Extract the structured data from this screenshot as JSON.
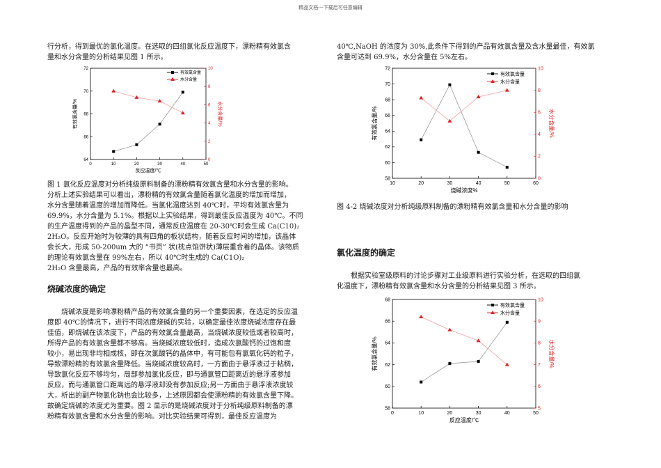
{
  "header": {
    "text": "精品文档---下载后可任意编辑"
  },
  "left": {
    "intro_lines": [
      "行分析，得到最优的氯化温度。在选取的四组氯化反应温度下，漂粉精有效氯含",
      "量和水分含量的分析结果见图 1 所示。"
    ],
    "fig1_caption_lines": [
      "图 1 氯化反应温度对分析纯级原料制备的漂粉精有效氯含量和水分含量的影响。",
      "分析上述实验结果可以看出，漂粉精的有效氯含量随着氯化温度的增加而增加，",
      "水分含量随着温度的增加而降低。当氯化温度达到 40℃时，平均有效氯含量为",
      "69.9%，水分含量为 5.1%。根据以上实验结果，得到最佳反应温度为 40℃。不同",
      "的生产温度得到的产品的晶型不同，通常反应温度在 20-30℃时会生成 Ca(C10)₂",
      "2H₂O。反应开始时为较薄的具有四角的板状结构，随着反应时间的增加，该晶体",
      "会长大，形成 50-200um 大的 “书页” 状(枕点馅饼状)薄层重合着的晶体。该物质",
      "的理论有效氯含量在 99%左右，所以 40℃时生成的 Ca(C1O)₂",
      "2H₂O 含量最高，产品的有效率含量也最高。"
    ],
    "section_heading": "烧碱浓度的确定",
    "body_lines": [
      "烧碱浓度是影响漂粉精产品的有效氯含量的另一个重要因素，在选定的反应温",
      "度即 40℃的情况下，进行不同浓度烧碱的实验，以确定最佳浓度烧碱浓度存在最",
      "佳值，即烧碱在该浓度下，产品的有效氯含量最高，当烧碱浓度较低或者较高时，",
      "所得产品的有效氯含量都不够高。当烧碱浓度较低时，造成次氯酸钙的过饱和度",
      "较小，易出现非均相成核，即在次氯酸钙的晶体中，有可能包有氯氧化钙的粒子，",
      "导致漂粉精的有效氯含量降低。当烧碱浓度较高时，一方面由于悬浮液过于粘稠，",
      "导致氯化反应不够均匀，局部参加氯化反应，即与通氯管口距离近的悬浮液参加",
      "反应，而与通氯管口距离远的悬浮液却没有参加反应;另一方面由于悬浮液浓度较",
      "大，析出的副产物氯化钠也会比较多，上述原因都会使漂粉精的有效氯含量下降。",
      "故确定烧碱的浓度尤为重要。图 2 显示的是烧碱浓度对于分析纯级原料制备的漂",
      "粉精有效氯含量和水分含量的影响。对比实验结果可得到，最佳反应温度为"
    ]
  },
  "right": {
    "intro_lines": [
      "40℃,NaOH 的浓度为 30%,此条件下得到的产品有效氯含量及含水量最佳，有效氯",
      "含量可达到 69.9%，水分含量在 5%左右。"
    ],
    "fig2_caption": "图 4-2 烧碱浓度对分析纯级原料制备的漂粉精有效氯含量和水分含量的影响",
    "section_heading": "氯化温度的确定",
    "body_lines": [
      "根据实验室级原料的讨论步骤对工业级原料进行实验分析，在选取的四组氯",
      "化温度下，漂粉精有效氯含量和水分含量的分析结果见图 3 所示。"
    ]
  },
  "chart_data": [
    {
      "type": "line",
      "x": [
        10,
        20,
        30,
        40
      ],
      "xlabel": "反应温度/℃",
      "ylabel": "有效氯含量/%",
      "y2label": "水分含量/%",
      "xlim": [
        0,
        50
      ],
      "xticks": [
        0,
        10,
        20,
        30,
        40,
        50
      ],
      "ylim": [
        64,
        72
      ],
      "yticks": [
        64,
        66,
        68,
        70,
        72
      ],
      "y2lim": [
        0,
        10
      ],
      "y2ticks": [
        0,
        2,
        4,
        6,
        8,
        10
      ],
      "series": [
        {
          "name": "有效氯含量",
          "axis": "left",
          "marker": "square",
          "color": "#000000",
          "values": [
            64.7,
            65.3,
            67.1,
            69.9
          ]
        },
        {
          "name": "水分含量",
          "axis": "right",
          "marker": "triangle",
          "color": "#e02020",
          "values": [
            7.5,
            6.8,
            6.4,
            5.1
          ]
        }
      ],
      "legend": "top-right"
    },
    {
      "type": "line",
      "x": [
        20,
        30,
        40,
        50
      ],
      "xlabel": "烧碱浓度%",
      "ylabel": "有效氯含量/%",
      "y2label": "水分含量/%",
      "xlim": [
        10,
        60
      ],
      "xticks": [
        10,
        20,
        30,
        40,
        50,
        60
      ],
      "ylim": [
        58,
        72
      ],
      "yticks": [
        58,
        60,
        62,
        64,
        66,
        68,
        70,
        72
      ],
      "y2lim": [
        0,
        10
      ],
      "y2ticks": [
        0,
        2,
        4,
        6,
        8,
        10
      ],
      "series": [
        {
          "name": "有效氯含量",
          "axis": "left",
          "marker": "square",
          "color": "#000000",
          "values": [
            62.9,
            69.9,
            61.3,
            59.4
          ]
        },
        {
          "name": "水分含量",
          "axis": "right",
          "marker": "triangle",
          "color": "#e02020",
          "values": [
            7.3,
            5.2,
            7.4,
            8.0
          ]
        }
      ],
      "legend": "top-right"
    },
    {
      "type": "line",
      "x": [
        10,
        20,
        30,
        40
      ],
      "xlabel": "反应温度/℃",
      "ylabel": "有效氯含量/%",
      "y2label": "水分含量/%",
      "xlim": [
        0,
        50
      ],
      "xticks": [
        0,
        10,
        20,
        30,
        40,
        50
      ],
      "ylim": [
        58,
        68
      ],
      "yticks": [
        58,
        60,
        62,
        64,
        66,
        68
      ],
      "y2lim": [
        5,
        10
      ],
      "y2ticks": [
        5,
        6,
        7,
        8,
        9,
        10
      ],
      "series": [
        {
          "name": "有效氯含量",
          "axis": "left",
          "marker": "square",
          "color": "#000000",
          "values": [
            60.4,
            62.1,
            62.3,
            65.9
          ]
        },
        {
          "name": "水分含量",
          "axis": "right",
          "marker": "triangle",
          "color": "#e02020",
          "values": [
            9.2,
            8.6,
            8.1,
            7.0
          ]
        }
      ],
      "legend": "top-right"
    }
  ]
}
